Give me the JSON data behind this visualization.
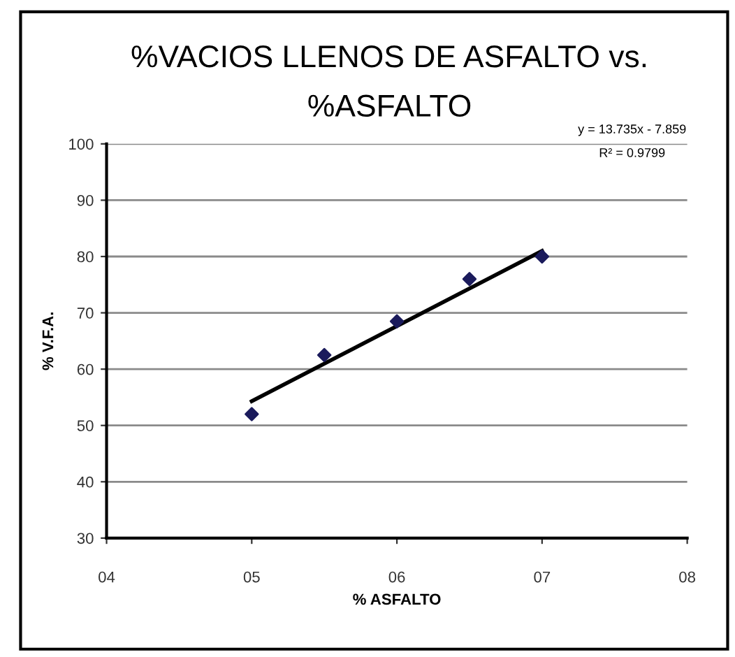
{
  "chart_data": {
    "type": "scatter",
    "title": "%VACIOS LLENOS DE ASFALTO vs.\n%ASFALTO",
    "xlabel": "% ASFALTO",
    "ylabel": "% V.F.A.",
    "annotations": [
      "y = 13.735x - 7.859",
      "R² = 0.9799"
    ],
    "xlim": [
      4,
      8
    ],
    "xticks": [
      {
        "value": 4,
        "label": "04"
      },
      {
        "value": 5,
        "label": "05"
      },
      {
        "value": 6,
        "label": "06"
      },
      {
        "value": 7,
        "label": "07"
      },
      {
        "value": 8,
        "label": "08"
      }
    ],
    "ylim": [
      30,
      100
    ],
    "yticks": [
      30,
      40,
      50,
      60,
      70,
      80,
      90,
      100
    ],
    "grid": "y",
    "series": [
      {
        "color": "#1b1b5c",
        "marker": "diamond",
        "x": [
          5,
          5.5,
          6,
          6.5,
          7
        ],
        "values": [
          52,
          62.5,
          68.5,
          76,
          80
        ]
      },
      {
        "type": "line",
        "color": "#000000",
        "marker": "none",
        "line_style": "solid",
        "x": [
          5,
          7
        ],
        "values": [
          54.3,
          81
        ]
      }
    ]
  }
}
